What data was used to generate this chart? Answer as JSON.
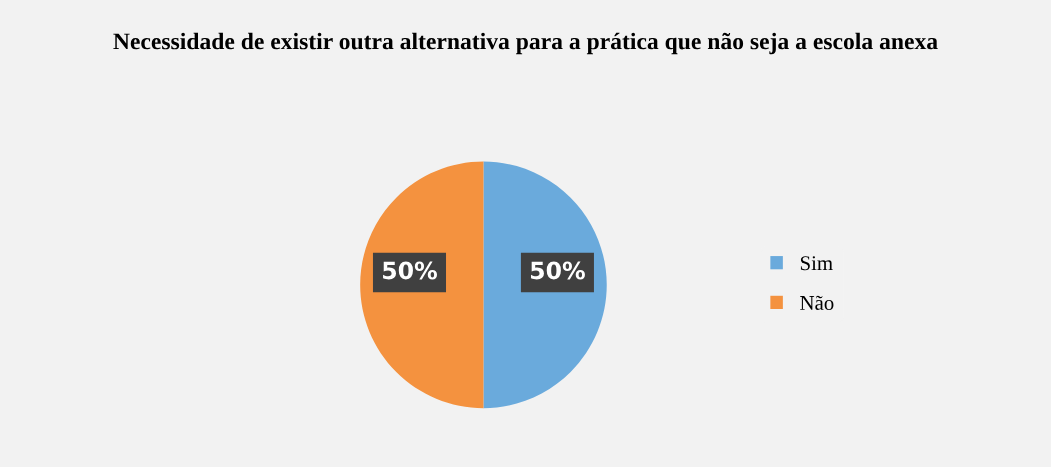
{
  "chart_data": {
    "type": "pie",
    "title": "Necessidade de existir outra alternativa para a prática que não seja a escola anexa",
    "categories": [
      "Sim",
      "Não"
    ],
    "values": [
      50,
      50
    ],
    "colors": [
      "#6aaadc",
      "#f4923f"
    ],
    "value_labels": [
      "50%",
      "50%"
    ],
    "legend": "right"
  }
}
